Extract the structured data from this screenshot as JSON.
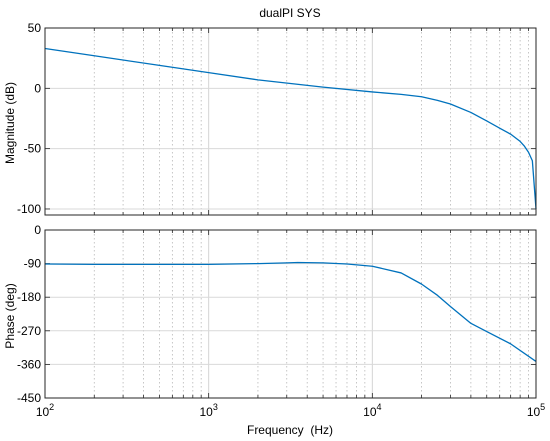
{
  "chart_data": [
    {
      "type": "line",
      "title": "dualPI SYS",
      "xlabel": "",
      "ylabel": "Magnitude (dB)",
      "xscale": "log",
      "xlim": [
        100,
        100000
      ],
      "ylim": [
        -105,
        50
      ],
      "yticks": [
        50,
        0,
        -50,
        -100
      ],
      "ytick_labels": [
        "50",
        "0",
        "-50",
        "-100"
      ],
      "grid": "x-minor dotted, major solid",
      "color": "#0072BD",
      "series": [
        {
          "x": [
            100,
            200,
            500,
            1000,
            2000,
            5000,
            10000,
            15000,
            20000,
            25000,
            30000,
            40000,
            50000,
            60000,
            70000,
            80000,
            85000,
            90000,
            95000,
            100000
          ],
          "y": [
            33,
            27,
            19,
            13,
            7,
            1,
            -3,
            -5,
            -7,
            -10,
            -13,
            -20,
            -27,
            -33,
            -38,
            -44,
            -48,
            -53,
            -60,
            -100
          ]
        }
      ]
    },
    {
      "type": "line",
      "title": "",
      "xlabel": "Frequency  (Hz)",
      "ylabel": "Phase (deg)",
      "xscale": "log",
      "xlim": [
        100,
        100000
      ],
      "ylim": [
        -450,
        0
      ],
      "yticks": [
        0,
        -90,
        -180,
        -270,
        -360,
        -450
      ],
      "ytick_labels": [
        "0",
        "-90",
        "-180",
        "-270",
        "-360",
        "-450"
      ],
      "xtick_labels": [
        "10^2",
        "10^3",
        "10^4",
        "10^5"
      ],
      "grid": "x-minor dotted, major solid",
      "color": "#0072BD",
      "series": [
        {
          "x": [
            100,
            200,
            500,
            1000,
            2000,
            3000,
            3500,
            5000,
            7000,
            10000,
            15000,
            20000,
            25000,
            30000,
            40000,
            50000,
            70000,
            100000
          ],
          "y": [
            -91,
            -92,
            -92,
            -92,
            -90,
            -88,
            -87,
            -88,
            -91,
            -97,
            -115,
            -145,
            -175,
            -205,
            -250,
            -272,
            -305,
            -352
          ]
        }
      ]
    }
  ]
}
